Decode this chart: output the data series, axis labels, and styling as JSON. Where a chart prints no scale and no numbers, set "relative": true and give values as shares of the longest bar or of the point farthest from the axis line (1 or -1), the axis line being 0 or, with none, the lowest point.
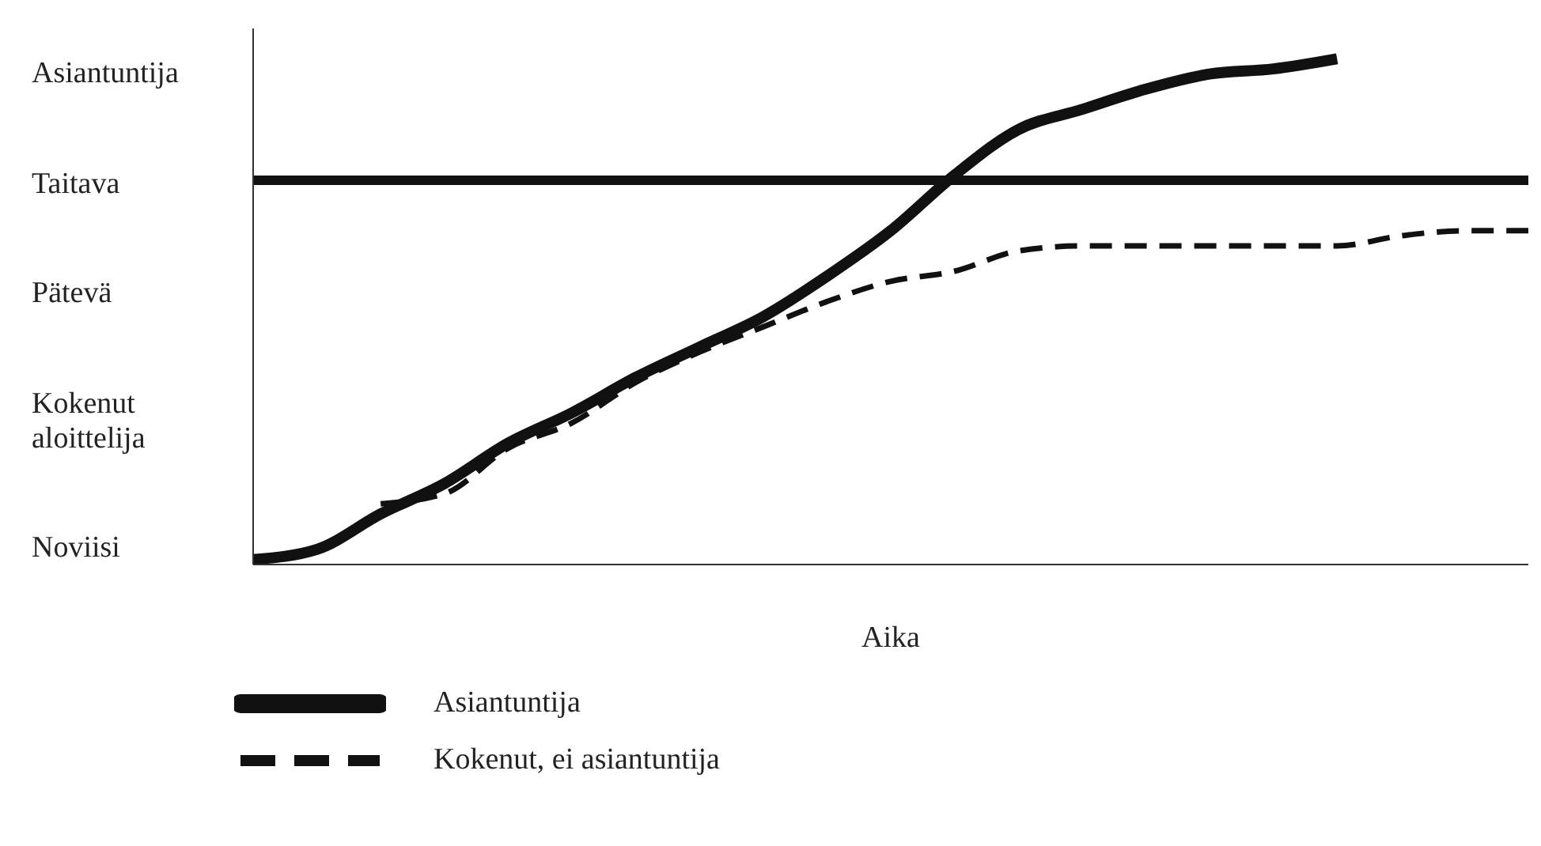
{
  "chart_data": {
    "type": "line",
    "xlabel": "Aika",
    "relative": true,
    "categories": [
      null,
      null,
      null,
      null,
      null,
      null,
      null,
      null,
      null,
      null,
      null,
      null,
      null,
      null,
      null,
      null,
      null,
      null,
      null,
      null,
      null
    ],
    "annotations": [
      "Noviisi",
      "Kokenut aloittelija",
      "Pätevä",
      "Taitava",
      "Asiantuntija"
    ],
    "series": [
      {
        "name": "Asiantuntija",
        "color": "#111111",
        "line_style": "solid",
        "values": [
          0.01,
          0.03,
          0.1,
          0.16,
          0.24,
          0.3,
          0.37,
          0.43,
          0.49,
          0.57,
          0.66,
          0.77,
          0.86,
          0.9,
          0.94,
          0.97,
          0.98,
          1,
          null,
          null,
          null
        ]
      },
      {
        "name": "Kokenut, ei asiantuntija",
        "color": "#111111",
        "line_style": "dashed",
        "values": [
          null,
          null,
          0.12,
          0.14,
          0.23,
          0.28,
          0.36,
          0.42,
          0.47,
          0.52,
          0.56,
          0.58,
          0.62,
          0.63,
          0.63,
          0.63,
          0.63,
          0.63,
          0.65,
          0.66,
          0.66
        ]
      }
    ],
    "ref_lines": [
      {
        "axis": "y",
        "value": 0.76,
        "color": "#111111"
      }
    ],
    "legend": "bottom",
    "marker": "none"
  }
}
